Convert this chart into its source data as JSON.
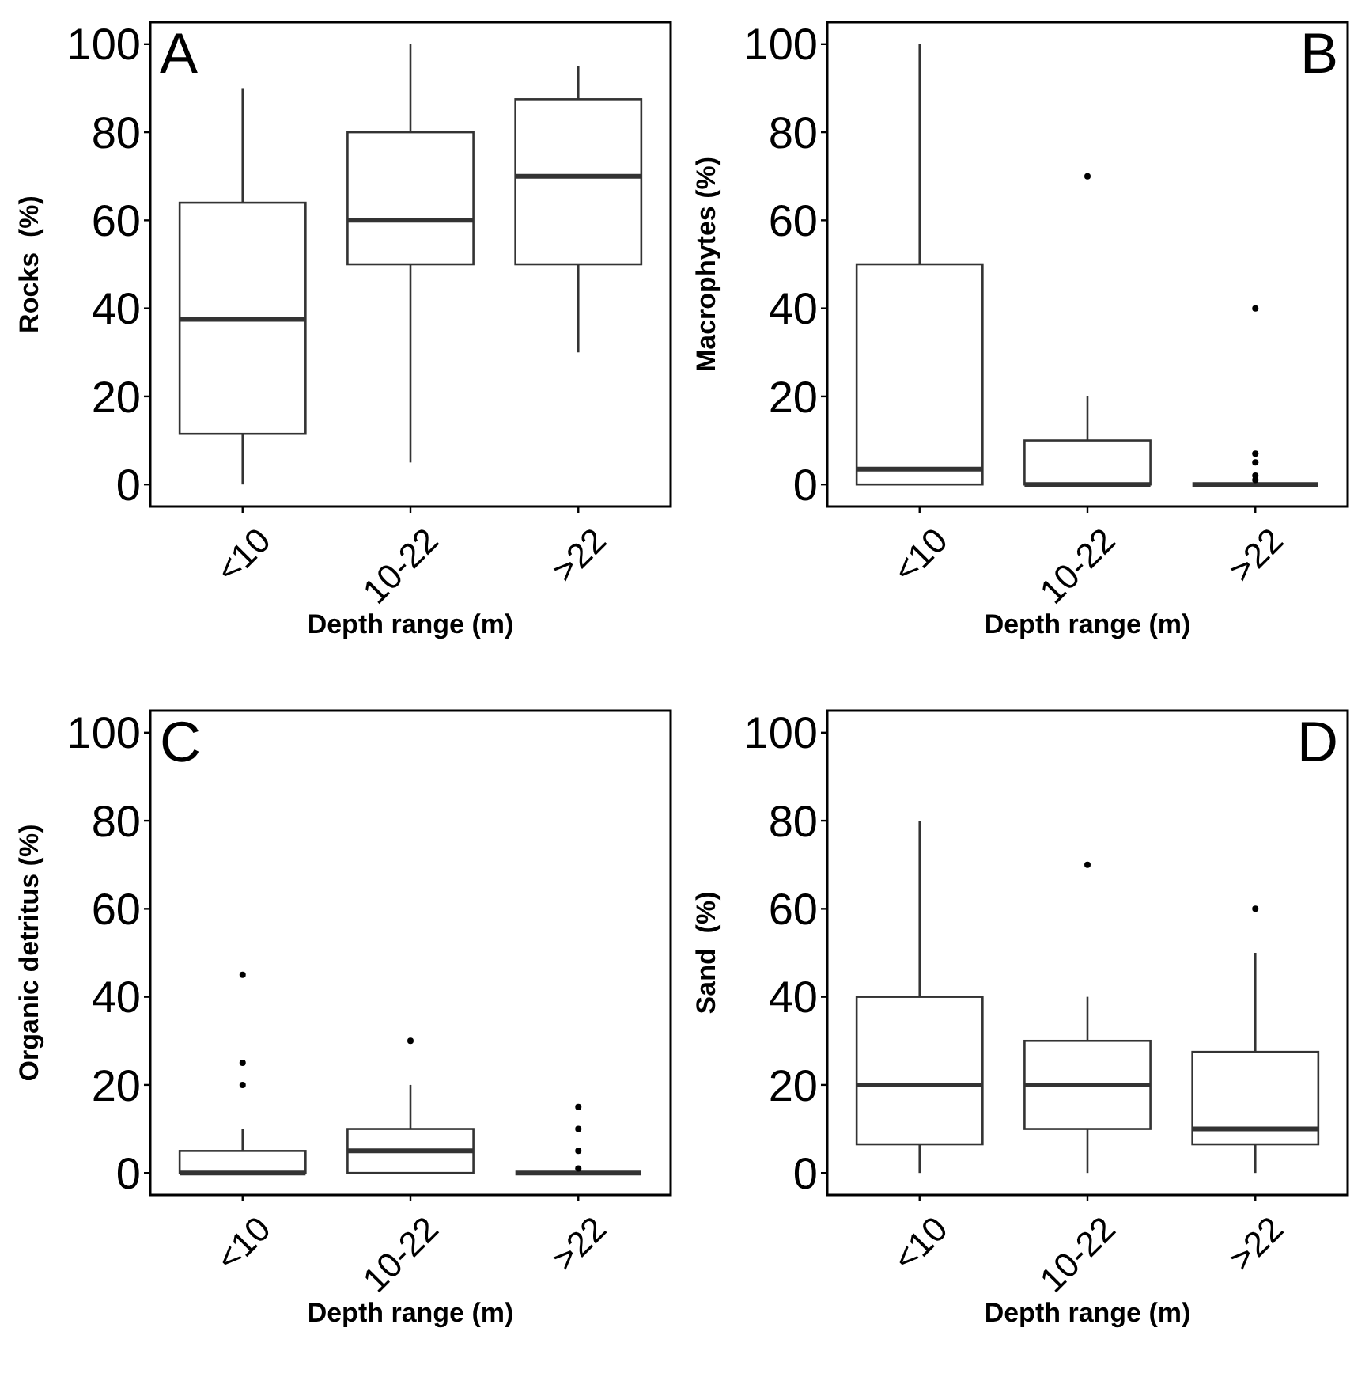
{
  "chart_data": [
    {
      "type": "box",
      "annotations": [
        "A"
      ],
      "xlabel": "Depth range (m)",
      "ylabel": "Rocks  (%)",
      "categories": [
        "<10",
        "10-22",
        ">22"
      ],
      "color": "#333333",
      "ylim": [
        -5,
        105
      ],
      "yticks": [
        0,
        20,
        40,
        60,
        80,
        100
      ],
      "boxes": [
        {
          "low": 0,
          "q1": 11.5,
          "median": 37.5,
          "q3": 64,
          "high": 90
        },
        {
          "low": 5,
          "q1": 50,
          "median": 60,
          "q3": 80,
          "high": 100
        },
        {
          "low": 30,
          "q1": 50,
          "median": 70,
          "q3": 87.5,
          "high": 95
        }
      ]
    },
    {
      "type": "box",
      "annotations": [
        "B"
      ],
      "xlabel": "Depth range (m)",
      "ylabel": "Macrophytes (%)",
      "categories": [
        "<10",
        "10-22",
        ">22"
      ],
      "color": "#333333",
      "ylim": [
        -5,
        105
      ],
      "yticks": [
        0,
        20,
        40,
        60,
        80,
        100
      ],
      "boxes": [
        {
          "low": 0,
          "q1": 0,
          "median": 3.5,
          "q3": 50,
          "high": 100
        },
        {
          "low": 0,
          "q1": 0,
          "median": 0,
          "q3": 10,
          "high": 20,
          "outliers": [
            70
          ]
        },
        {
          "low": 0,
          "q1": 0,
          "median": 0,
          "q3": 0,
          "high": 0,
          "outliers": [
            40,
            7,
            5,
            2,
            1
          ]
        }
      ]
    },
    {
      "type": "box",
      "annotations": [
        "C"
      ],
      "xlabel": "Depth range (m)",
      "ylabel": "Organic detritus (%)",
      "categories": [
        "<10",
        "10-22",
        ">22"
      ],
      "color": "#333333",
      "ylim": [
        -5,
        105
      ],
      "yticks": [
        0,
        20,
        40,
        60,
        80,
        100
      ],
      "boxes": [
        {
          "low": 0,
          "q1": 0,
          "median": 0,
          "q3": 5,
          "high": 10,
          "outliers": [
            20,
            25,
            45
          ]
        },
        {
          "low": 0,
          "q1": 0,
          "median": 5,
          "q3": 10,
          "high": 20,
          "outliers": [
            30
          ]
        },
        {
          "low": 0,
          "q1": 0,
          "median": 0,
          "q3": 0,
          "high": 0,
          "outliers": [
            1,
            5,
            10,
            15
          ]
        }
      ]
    },
    {
      "type": "box",
      "annotations": [
        "D"
      ],
      "xlabel": "Depth range (m)",
      "ylabel": "Sand  (%)",
      "categories": [
        "<10",
        "10-22",
        ">22"
      ],
      "color": "#333333",
      "ylim": [
        -5,
        105
      ],
      "yticks": [
        0,
        20,
        40,
        60,
        80,
        100
      ],
      "boxes": [
        {
          "low": 0,
          "q1": 6.5,
          "median": 20,
          "q3": 40,
          "high": 80
        },
        {
          "low": 0,
          "q1": 10,
          "median": 20,
          "q3": 30,
          "high": 40,
          "outliers": [
            70
          ]
        },
        {
          "low": 0,
          "q1": 6.5,
          "median": 10,
          "q3": 27.5,
          "high": 50,
          "outliers": [
            60
          ]
        }
      ]
    }
  ]
}
